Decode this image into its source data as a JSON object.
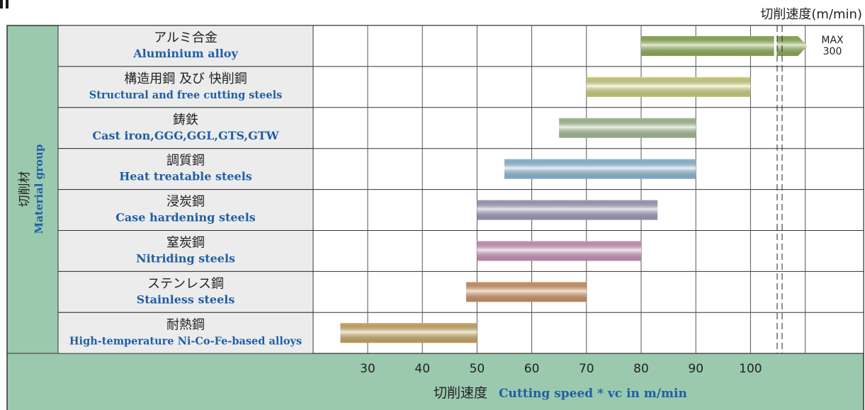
{
  "unit_header": "切削速度(m/min)",
  "side_label": {
    "jp": "切削材",
    "en": "Material group"
  },
  "chart_data": {
    "type": "bar",
    "orientation": "horizontal-range",
    "categories": [
      {
        "jp": "アルミ合金",
        "en": "Aluminium alloy"
      },
      {
        "jp": "構造用鋼 及び 快削鋼",
        "en": "Structural and free cutting steels"
      },
      {
        "jp": "鋳鉄",
        "en": "Cast iron,GGG,GGL,GTS,GTW"
      },
      {
        "jp": "調質鋼",
        "en": "Heat treatable steels"
      },
      {
        "jp": "浸炭鋼",
        "en": "Case hardening steels"
      },
      {
        "jp": "窒炭鋼",
        "en": "Nitriding steels"
      },
      {
        "jp": "ステンレス鋼",
        "en": "Stainless steels"
      },
      {
        "jp": "耐熱鋼",
        "en": "High-temperature Ni-Co-Fe-based alloys"
      }
    ],
    "ranges": [
      {
        "low": 80,
        "high": 300,
        "note": [
          "MAX",
          "300"
        ],
        "arrow": true,
        "color": "#9cc25c"
      },
      {
        "low": 70,
        "high": 100,
        "color": "#e6eb8a"
      },
      {
        "low": 65,
        "high": 90,
        "color": "#b6d3a6"
      },
      {
        "low": 55,
        "high": 90,
        "color": "#9fd0ef"
      },
      {
        "low": 50,
        "high": 83,
        "color": "#b1add0"
      },
      {
        "low": 50,
        "high": 80,
        "color": "#e3a6cf"
      },
      {
        "low": 48,
        "high": 70,
        "color": "#e8a470"
      },
      {
        "low": 25,
        "high": 50,
        "color": "#e3bd6d"
      }
    ],
    "x_ticks": [
      30,
      40,
      50,
      60,
      70,
      80,
      90,
      100
    ],
    "xlim": [
      20,
      110
    ],
    "axis_break": true,
    "xlabel": {
      "jp": "切削速度",
      "en": "Cutting speed * vc in m/min"
    },
    "grid": true,
    "colors": {
      "panel": "#9ac9ae",
      "label_cell": "#ececec",
      "border": "#333333"
    }
  }
}
